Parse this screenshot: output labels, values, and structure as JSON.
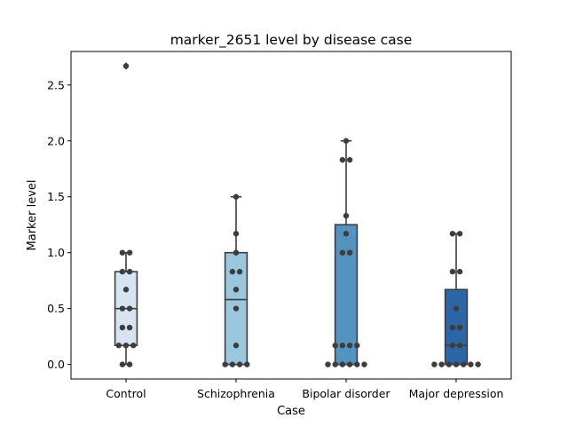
{
  "chart_data": {
    "type": "box",
    "title": "marker_2651 level by disease case",
    "xlabel": "Case",
    "ylabel": "Marker level",
    "ylim": [
      -0.13,
      2.8
    ],
    "yticks": [
      0.0,
      0.5,
      1.0,
      1.5,
      2.0,
      2.5
    ],
    "ytick_labels": [
      "0.0",
      "0.5",
      "1.0",
      "1.5",
      "2.0",
      "2.5"
    ],
    "grid": false,
    "categories": [
      "Control",
      "Schizophrenia",
      "Bipolar disorder",
      "Major depression"
    ],
    "colors": [
      "#d6e4f2",
      "#9ac6de",
      "#5493c0",
      "#2d66a6"
    ],
    "edge_color": "#3d3d3d",
    "point_color": "#3d3d3d",
    "boxes": [
      {
        "q1": 0.17,
        "median": 0.5,
        "q3": 0.83,
        "whisker_low": 0.0,
        "whisker_high": 1.0,
        "outliers": [
          2.67
        ]
      },
      {
        "q1": 0.0,
        "median": 0.58,
        "q3": 1.0,
        "whisker_low": 0.0,
        "whisker_high": 1.5,
        "outliers": []
      },
      {
        "q1": 0.0,
        "median": 0.0,
        "q3": 1.25,
        "whisker_low": 0.0,
        "whisker_high": 2.0,
        "outliers": []
      },
      {
        "q1": 0.0,
        "median": 0.17,
        "q3": 0.67,
        "whisker_low": 0.0,
        "whisker_high": 1.17,
        "outliers": []
      }
    ],
    "points": [
      [
        0.0,
        0.0,
        0.17,
        0.17,
        0.17,
        0.33,
        0.33,
        0.5,
        0.5,
        0.67,
        0.83,
        0.83,
        1.0,
        1.0,
        2.67
      ],
      [
        0.0,
        0.0,
        0.0,
        0.0,
        0.17,
        0.5,
        0.67,
        0.83,
        0.83,
        1.0,
        1.17,
        1.5
      ],
      [
        0.0,
        0.0,
        0.0,
        0.0,
        0.0,
        0.0,
        0.17,
        0.17,
        0.17,
        0.17,
        1.0,
        1.0,
        1.17,
        1.33,
        1.83,
        1.83,
        2.0
      ],
      [
        0.0,
        0.0,
        0.0,
        0.0,
        0.0,
        0.0,
        0.0,
        0.17,
        0.17,
        0.33,
        0.33,
        0.5,
        0.83,
        0.83,
        1.17,
        1.17
      ]
    ]
  }
}
